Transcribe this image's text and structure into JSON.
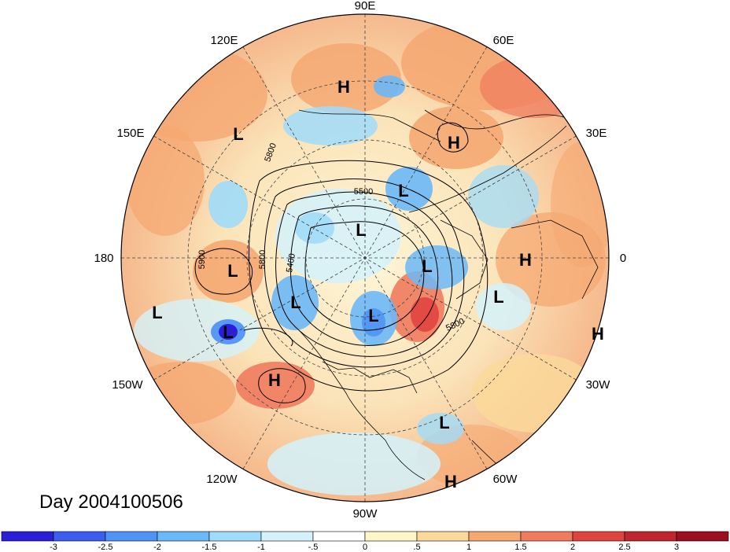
{
  "title": "Day 2004100506",
  "longitude_labels": [
    "90E",
    "60E",
    "30E",
    "0",
    "30W",
    "60W",
    "90W",
    "120W",
    "150W",
    "180",
    "150E",
    "120E"
  ],
  "contour_labels": [
    "5500",
    "5800",
    "5800",
    "5400",
    "5800",
    "5900"
  ],
  "pressure_centers": [
    {
      "type": "H",
      "name": "high-center-1"
    },
    {
      "type": "L",
      "name": "low-center-1"
    },
    {
      "type": "H",
      "name": "high-center-2"
    },
    {
      "type": "L",
      "name": "low-center-2"
    },
    {
      "type": "L",
      "name": "low-center-3"
    },
    {
      "type": "L",
      "name": "low-center-4"
    },
    {
      "type": "H",
      "name": "high-center-3"
    },
    {
      "type": "H",
      "name": "high-center-4"
    },
    {
      "type": "L",
      "name": "low-center-5"
    },
    {
      "type": "L",
      "name": "low-center-6"
    },
    {
      "type": "L",
      "name": "low-center-7"
    },
    {
      "type": "L",
      "name": "low-center-8"
    },
    {
      "type": "L",
      "name": "low-center-9"
    },
    {
      "type": "L",
      "name": "low-center-10"
    },
    {
      "type": "H",
      "name": "high-center-5"
    },
    {
      "type": "L",
      "name": "low-center-11"
    },
    {
      "type": "H",
      "name": "high-center-6"
    }
  ],
  "colorbar": {
    "labels": [
      "-3",
      "-2.5",
      "-2",
      "-1.5",
      "-1",
      "-.5",
      "0",
      ".5",
      "1",
      "1.5",
      "2",
      "2.5",
      "3"
    ],
    "colors": [
      "#2b1ed6",
      "#3a5ff0",
      "#4f93f5",
      "#6bb8f7",
      "#a0dcfa",
      "#d4f2fb",
      "#ffffff",
      "#fff6c7",
      "#fbd99a",
      "#f5a872",
      "#f07b5e",
      "#e0443f",
      "#c0262e",
      "#9b0f1e"
    ]
  },
  "colors": {
    "grid": "#444444",
    "land": "#000000",
    "contour": "#000000"
  }
}
